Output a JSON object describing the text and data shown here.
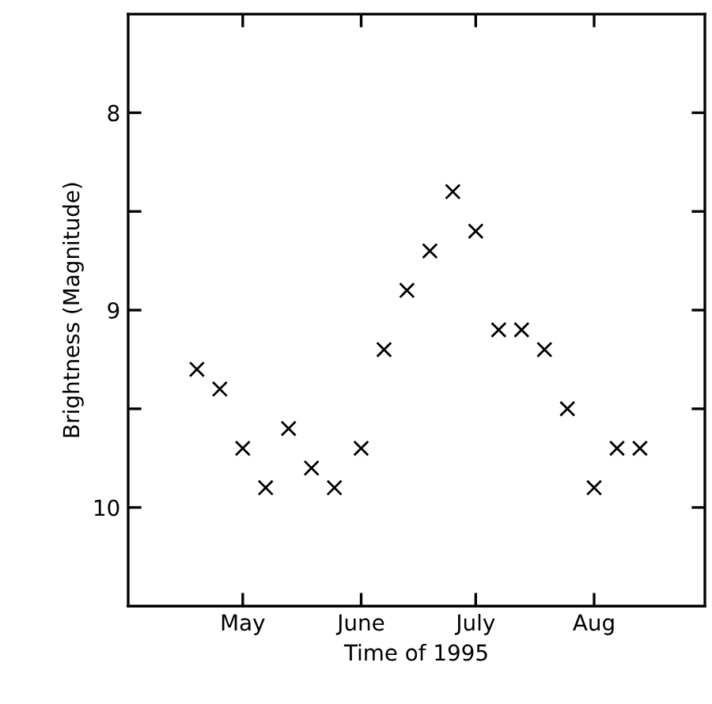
{
  "chart_data": {
    "type": "scatter",
    "xlabel": "Time of 1995",
    "ylabel": "Brightness (Magnitude)",
    "x": [
      "1995-04-19",
      "1995-04-25",
      "1995-05-01",
      "1995-05-07",
      "1995-05-13",
      "1995-05-19",
      "1995-05-25",
      "1995-06-01",
      "1995-06-07",
      "1995-06-13",
      "1995-06-19",
      "1995-06-25",
      "1995-07-01",
      "1995-07-07",
      "1995-07-13",
      "1995-07-19",
      "1995-07-25",
      "1995-08-01",
      "1995-08-07",
      "1995-08-13"
    ],
    "series": [
      {
        "color": "#000000",
        "values": [
          9.3,
          9.4,
          9.7,
          9.9,
          9.6,
          9.8,
          9.9,
          9.7,
          9.2,
          8.9,
          8.7,
          8.4,
          8.6,
          9.1,
          9.1,
          9.2,
          9.5,
          9.9,
          9.7,
          9.7
        ]
      }
    ],
    "marker": "cross",
    "xlim": [
      "1995-04-01",
      "1995-08-30"
    ],
    "xticks": [
      {
        "value": "1995-05-01",
        "label": "May"
      },
      {
        "value": "1995-06-01",
        "label": "June"
      },
      {
        "value": "1995-07-01",
        "label": "July"
      },
      {
        "value": "1995-08-01",
        "label": "Aug"
      }
    ],
    "ylim": [
      10.5,
      7.5
    ],
    "yticks": [
      8,
      {
        "value": 8.5,
        "label": null
      },
      9,
      {
        "value": 9.5,
        "label": null
      },
      10
    ]
  }
}
